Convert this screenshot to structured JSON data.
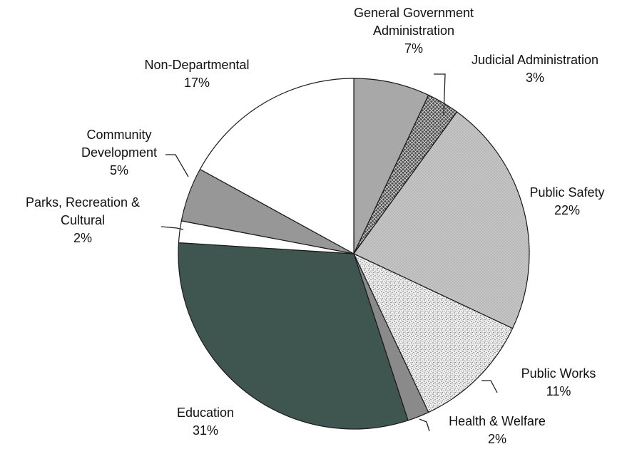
{
  "chart_data": {
    "type": "pie",
    "title": "",
    "legend": "none",
    "start": "top, clockwise",
    "unit": "%",
    "slices": [
      {
        "label_lines": [
          "General Government",
          "Administration"
        ],
        "percent_text": "7%",
        "value": 7,
        "fill": "#a8a8a8",
        "pattern": "none"
      },
      {
        "label_lines": [
          "Judicial Administration"
        ],
        "percent_text": "3%",
        "value": 3,
        "fill": "#3a3a3a",
        "pattern": "crosshatch"
      },
      {
        "label_lines": [
          "Public Safety"
        ],
        "percent_text": "22%",
        "value": 22,
        "fill": "#c2c2c2",
        "pattern": "fine-dots"
      },
      {
        "label_lines": [
          "Public Works"
        ],
        "percent_text": "11%",
        "value": 11,
        "fill": "#ececec",
        "pattern": "stipple"
      },
      {
        "label_lines": [
          "Health & Welfare"
        ],
        "percent_text": "2%",
        "value": 2,
        "fill": "#8a8a8a",
        "pattern": "none"
      },
      {
        "label_lines": [
          "Education"
        ],
        "percent_text": "31%",
        "value": 31,
        "fill": "#3f5650",
        "pattern": "none"
      },
      {
        "label_lines": [
          "Parks, Recreation &",
          "Cultural"
        ],
        "percent_text": "2%",
        "value": 2,
        "fill": "#ffffff",
        "pattern": "none"
      },
      {
        "label_lines": [
          "Community",
          "Development"
        ],
        "percent_text": "5%",
        "value": 5,
        "fill": "#979797",
        "pattern": "none"
      },
      {
        "label_lines": [
          "Non-Departmental"
        ],
        "percent_text": "17%",
        "value": 17,
        "fill": "#ffffff",
        "pattern": "none"
      }
    ]
  }
}
